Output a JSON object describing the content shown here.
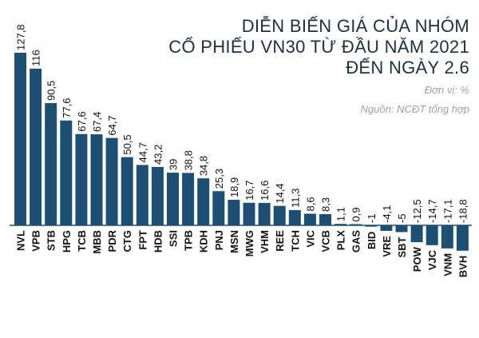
{
  "title_lines": [
    "DIỄN BIẾN GIÁ CỦA NHÓM",
    "CỔ PHIẾU VN30 TỪ ĐẦU NĂM 2021",
    "ĐẾN NGÀY 2.6"
  ],
  "unit": "Đơn vị: %",
  "source": "Nguồn: NCĐT tổng hợp",
  "colors": {
    "bar": "#1c4f73",
    "axis": "#1c4f73",
    "text": "#111111"
  },
  "chart_data": {
    "type": "bar",
    "categories": [
      "NVL",
      "VPB",
      "STB",
      "HPG",
      "TCB",
      "MBB",
      "PDR",
      "CTG",
      "FPT",
      "HDB",
      "SSI",
      "TPB",
      "KDH",
      "PNJ",
      "MSN",
      "MWG",
      "VHM",
      "REE",
      "TCH",
      "VIC",
      "VCB",
      "PLX",
      "GAS",
      "BID",
      "VRE",
      "SBT",
      "POW",
      "VJC",
      "VNM",
      "BVH"
    ],
    "values": [
      127.8,
      116,
      90.5,
      77.6,
      67.6,
      67.4,
      64.7,
      50.5,
      44.7,
      43.2,
      39,
      38.8,
      34.8,
      25.3,
      18.9,
      16.7,
      16.6,
      14.4,
      11.3,
      8.6,
      8.3,
      1.1,
      0.9,
      -1,
      -4.1,
      -5,
      -12.5,
      -14.7,
      -17.1,
      -18.8
    ],
    "value_labels": [
      "127,8",
      "116",
      "90,5",
      "77,6",
      "67,6",
      "67,4",
      "64,7",
      "50,5",
      "44,7",
      "43,2",
      "39",
      "38,8",
      "34,8",
      "25,3",
      "18,9",
      "16,7",
      "16,6",
      "14,4",
      "11,3",
      "8,6",
      "8,3",
      "1,1",
      "0,9",
      "-1",
      "-4,1",
      "-5",
      "-12,5",
      "-14,7",
      "-17,1",
      "-18,8"
    ],
    "title": "DIỄN BIẾN GIÁ CỦA NHÓM CỔ PHIẾU VN30 TỪ ĐẦU NĂM 2021 ĐẾN NGÀY 2.6",
    "xlabel": "",
    "ylabel": "",
    "ylim": [
      -20,
      130
    ],
    "grid": false,
    "legend": "none"
  }
}
